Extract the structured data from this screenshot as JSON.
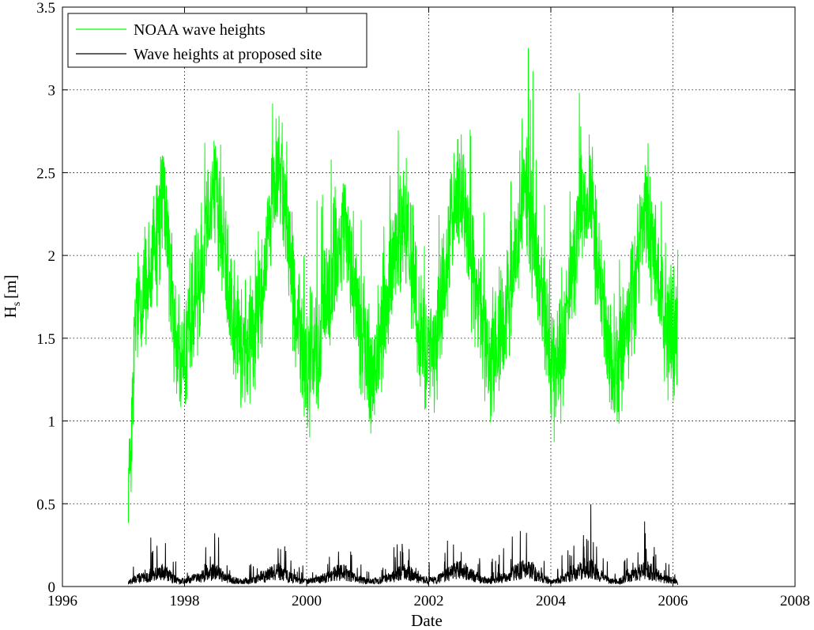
{
  "chart_data": {
    "type": "line",
    "title": "",
    "xlabel": "Date",
    "ylabel": "H",
    "ylabel_subscript": "s",
    "ylabel_unit": "[m]",
    "xlim": [
      1996,
      2008
    ],
    "ylim": [
      0,
      3.5
    ],
    "xticks": [
      "1996",
      "1998",
      "2000",
      "2002",
      "2004",
      "2006",
      "2008"
    ],
    "yticks": [
      "0",
      "0.5",
      "1",
      "1.5",
      "2",
      "2.5",
      "3",
      "3.5"
    ],
    "grid": true,
    "legend_position": "top-left",
    "colors": {
      "noaa": "#00ff00",
      "site": "#000000"
    },
    "series": [
      {
        "name": "NOAA wave heights",
        "color": "#00ff00",
        "x": [
          1997.08,
          1997.2,
          1997.35,
          1997.5,
          1997.65,
          1997.8,
          1997.92,
          1998.05,
          1998.2,
          1998.35,
          1998.5,
          1998.65,
          1998.8,
          1998.95,
          1999.1,
          1999.25,
          1999.4,
          1999.55,
          1999.7,
          1999.85,
          2000.0,
          2000.15,
          2000.3,
          2000.45,
          2000.6,
          2000.75,
          2000.9,
          2001.05,
          2001.2,
          2001.35,
          2001.5,
          2001.65,
          2001.8,
          2001.95,
          2002.1,
          2002.25,
          2002.4,
          2002.55,
          2002.7,
          2002.85,
          2003.0,
          2003.15,
          2003.3,
          2003.45,
          2003.6,
          2003.75,
          2003.9,
          2004.05,
          2004.2,
          2004.35,
          2004.5,
          2004.65,
          2004.8,
          2004.95,
          2005.1,
          2005.25,
          2005.4,
          2005.55,
          2005.7,
          2005.85,
          2006.0,
          2006.08
        ],
        "values": [
          0.57,
          1.6,
          1.8,
          2.0,
          2.4,
          1.7,
          1.3,
          1.5,
          1.8,
          2.1,
          2.5,
          2.0,
          1.6,
          1.4,
          1.5,
          1.8,
          2.2,
          2.6,
          2.1,
          1.6,
          1.3,
          1.4,
          1.7,
          2.0,
          2.2,
          1.9,
          1.5,
          1.3,
          1.5,
          1.8,
          2.1,
          2.2,
          1.7,
          1.4,
          1.4,
          1.8,
          2.3,
          2.4,
          1.9,
          1.6,
          1.4,
          1.5,
          1.7,
          2.1,
          2.4,
          2.0,
          1.6,
          1.2,
          1.5,
          1.9,
          2.3,
          2.4,
          1.8,
          1.4,
          1.3,
          1.6,
          1.9,
          2.3,
          2.0,
          1.6,
          1.5,
          1.6
        ]
      },
      {
        "name": "Wave heights at proposed site",
        "color": "#000000",
        "x": [
          1997.08,
          1997.2,
          1997.35,
          1997.5,
          1997.65,
          1997.8,
          1997.92,
          1998.05,
          1998.2,
          1998.35,
          1998.5,
          1998.65,
          1998.8,
          1998.95,
          1999.1,
          1999.25,
          1999.4,
          1999.55,
          1999.7,
          1999.85,
          2000.0,
          2000.15,
          2000.3,
          2000.45,
          2000.6,
          2000.75,
          2000.9,
          2001.05,
          2001.2,
          2001.35,
          2001.5,
          2001.65,
          2001.8,
          2001.95,
          2002.1,
          2002.25,
          2002.4,
          2002.55,
          2002.7,
          2002.85,
          2003.0,
          2003.15,
          2003.3,
          2003.45,
          2003.6,
          2003.75,
          2003.9,
          2004.05,
          2004.2,
          2004.35,
          2004.5,
          2004.65,
          2004.8,
          2004.95,
          2005.1,
          2005.25,
          2005.4,
          2005.55,
          2005.7,
          2005.85,
          2006.0,
          2006.08
        ],
        "values": [
          0.03,
          0.06,
          0.08,
          0.1,
          0.12,
          0.07,
          0.04,
          0.05,
          0.07,
          0.09,
          0.12,
          0.08,
          0.05,
          0.04,
          0.05,
          0.07,
          0.1,
          0.13,
          0.08,
          0.05,
          0.04,
          0.05,
          0.07,
          0.1,
          0.12,
          0.08,
          0.05,
          0.04,
          0.05,
          0.07,
          0.1,
          0.12,
          0.07,
          0.05,
          0.05,
          0.08,
          0.12,
          0.14,
          0.09,
          0.06,
          0.05,
          0.06,
          0.08,
          0.12,
          0.15,
          0.1,
          0.06,
          0.04,
          0.06,
          0.09,
          0.13,
          0.15,
          0.09,
          0.05,
          0.04,
          0.07,
          0.1,
          0.14,
          0.1,
          0.06,
          0.05,
          0.03
        ]
      }
    ]
  }
}
